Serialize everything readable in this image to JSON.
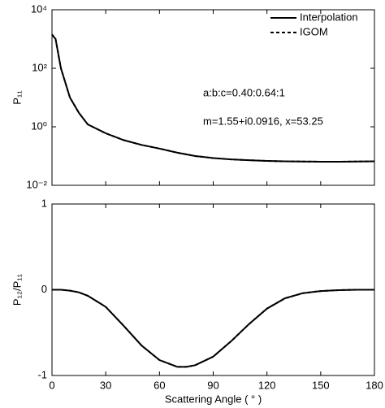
{
  "chart_data": [
    {
      "type": "line",
      "ylabel": "P₁₁",
      "log_scale": true,
      "legend": "upper right",
      "xlim": [
        0,
        180
      ],
      "xticks": [
        0,
        30,
        60,
        90,
        120,
        150,
        180
      ],
      "ylim": [
        0.01,
        10000
      ],
      "yticks": [
        {
          "value": 0.01,
          "label": "10⁻²"
        },
        {
          "value": 1,
          "label": "10⁰"
        },
        {
          "value": 100,
          "label": "10²"
        },
        {
          "value": 10000,
          "label": "10⁴"
        }
      ],
      "annotations": [
        "a:b:c=0.40:0.64:1",
        "m=1.55+i0.0916, x=53.25"
      ],
      "x": [
        0,
        2,
        5,
        10,
        15,
        20,
        30,
        40,
        50,
        60,
        70,
        80,
        90,
        100,
        110,
        120,
        130,
        140,
        150,
        160,
        170,
        180
      ],
      "series": [
        {
          "name": "Interpolation",
          "color": "#000000",
          "style": "solid",
          "values": [
            1400,
            1000,
            100,
            10,
            3,
            1.2,
            0.6,
            0.35,
            0.24,
            0.18,
            0.13,
            0.1,
            0.085,
            0.077,
            0.072,
            0.068,
            0.066,
            0.065,
            0.064,
            0.064,
            0.065,
            0.066
          ]
        },
        {
          "name": "IGOM",
          "color": "#000000",
          "style": "dashed",
          "values": [
            1450,
            1000,
            100,
            10,
            3,
            1.2,
            0.6,
            0.35,
            0.24,
            0.18,
            0.13,
            0.1,
            0.085,
            0.077,
            0.072,
            0.068,
            0.066,
            0.065,
            0.064,
            0.064,
            0.065,
            0.066
          ]
        }
      ]
    },
    {
      "type": "line",
      "ylabel": "P₁₂/P₁₁",
      "xlabel": "Scattering Angle ( ° )",
      "xlim": [
        0,
        180
      ],
      "xticks": [
        0,
        30,
        60,
        90,
        120,
        150,
        180
      ],
      "ylim": [
        -1,
        1
      ],
      "yticks": [
        -1,
        0,
        1
      ],
      "x": [
        0,
        5,
        10,
        15,
        20,
        30,
        40,
        50,
        60,
        70,
        75,
        80,
        90,
        100,
        110,
        120,
        130,
        140,
        150,
        160,
        170,
        180
      ],
      "series": [
        {
          "name": "Interpolation",
          "color": "#000000",
          "style": "solid",
          "values": [
            0,
            0,
            -0.01,
            -0.03,
            -0.07,
            -0.2,
            -0.42,
            -0.65,
            -0.82,
            -0.9,
            -0.9,
            -0.88,
            -0.78,
            -0.6,
            -0.4,
            -0.22,
            -0.1,
            -0.04,
            -0.015,
            -0.005,
            0,
            0
          ]
        },
        {
          "name": "IGOM",
          "color": "#000000",
          "style": "dashed",
          "values": [
            0,
            0,
            -0.01,
            -0.03,
            -0.07,
            -0.2,
            -0.42,
            -0.65,
            -0.82,
            -0.9,
            -0.9,
            -0.88,
            -0.78,
            -0.6,
            -0.4,
            -0.22,
            -0.1,
            -0.04,
            -0.015,
            -0.005,
            0,
            0
          ]
        }
      ]
    }
  ]
}
